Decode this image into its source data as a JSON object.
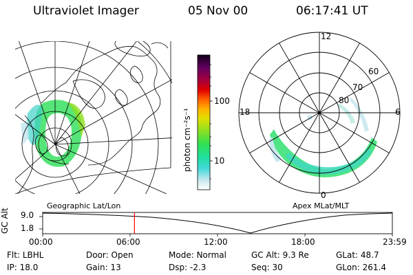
{
  "header": {
    "instrument": "Ultraviolet Imager",
    "date": "05 Nov 00",
    "time": "06:17:41 UT"
  },
  "colorbar": {
    "unit_label": "photon cm⁻²s⁻¹",
    "ticks": [
      "100",
      "10"
    ]
  },
  "polar_plot": {
    "mlt_labels": {
      "top": "12",
      "left": "18",
      "right": "6",
      "bottom": "0"
    },
    "mlat_labels": [
      "60",
      "70",
      "80"
    ]
  },
  "map_labels": {
    "left": "Geographic Lat/Lon",
    "right": "Apex MLat/MLT"
  },
  "timeline": {
    "ylabel": "GC Alt",
    "y_ticks": [
      "9.0",
      "1.8"
    ],
    "x_ticks": [
      "00:00",
      "06:00",
      "12:00",
      "18:00",
      "23:59"
    ],
    "marker_time": "06:17:41",
    "marker_color": "#ff0000"
  },
  "info": {
    "row1": [
      {
        "key": "Flt:",
        "value": "LBHL"
      },
      {
        "key": "Door:",
        "value": "Open"
      },
      {
        "key": "Mode:",
        "value": "Normal"
      },
      {
        "key": "GC Alt:",
        "value": "9.3 Re"
      },
      {
        "key": "GLat:",
        "value": "48.7"
      }
    ],
    "row2": [
      {
        "key": "IP:",
        "value": "18.0"
      },
      {
        "key": "Gain:",
        "value": "13"
      },
      {
        "key": "Dsp:",
        "value": "-2.3"
      },
      {
        "key": "Seq:",
        "value": "30"
      },
      {
        "key": "GLon:",
        "value": "261.4"
      }
    ]
  }
}
